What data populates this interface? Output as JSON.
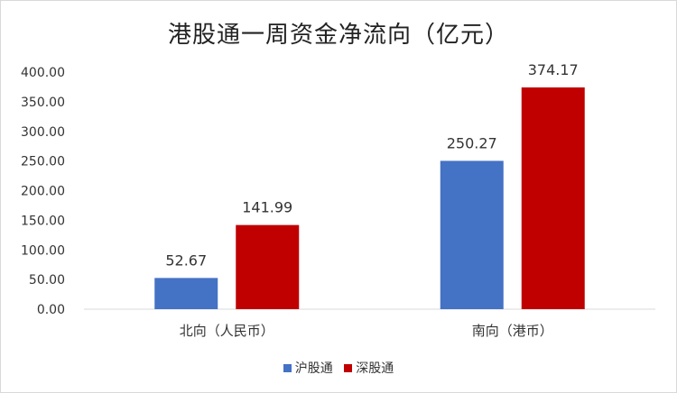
{
  "chart_data": {
    "type": "bar",
    "title": "港股通一周资金净流向（亿元）",
    "categories": [
      "北向（人民币）",
      "南向（港币）"
    ],
    "series": [
      {
        "name": "沪股通",
        "values": [
          52.67,
          250.27
        ],
        "color": "#4472C4"
      },
      {
        "name": "深股通",
        "values": [
          141.99,
          374.17
        ],
        "color": "#C00000"
      }
    ],
    "value_labels": [
      [
        "52.67",
        "250.27"
      ],
      [
        "141.99",
        "374.17"
      ]
    ],
    "ylim": [
      0,
      400
    ],
    "yticks": [
      "0.00",
      "50.00",
      "100.00",
      "150.00",
      "200.00",
      "250.00",
      "300.00",
      "350.00",
      "400.00"
    ],
    "legend_position": "bottom",
    "grid": false
  }
}
